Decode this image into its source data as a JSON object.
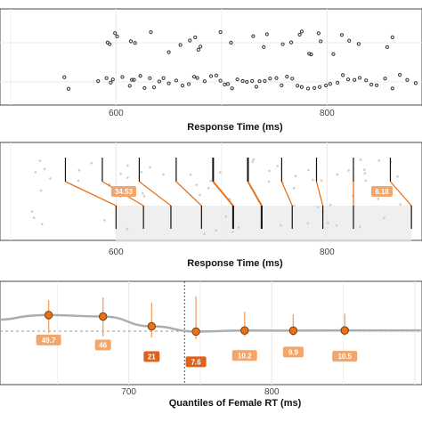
{
  "chart_data": [
    {
      "type": "scatter",
      "xlabel": "Response Time (ms)",
      "x_ticks": [
        600,
        800
      ],
      "xlim": [
        490,
        890
      ],
      "grid": true,
      "series": [
        {
          "y_row": "upper",
          "x": [
            592,
            594,
            599,
            601,
            614,
            618,
            633,
            650,
            661,
            670,
            675,
            678,
            680,
            699,
            709,
            730,
            740,
            743,
            758,
            766,
            774,
            776,
            783,
            785,
            792,
            794,
            806,
            814,
            821,
            830,
            857,
            862
          ]
        },
        {
          "y_row": "lower",
          "x": [
            551,
            555,
            583,
            591,
            595,
            597,
            606,
            613,
            615,
            617,
            623,
            627,
            632,
            636,
            641,
            645,
            650,
            657,
            663,
            669,
            674,
            677,
            684,
            690,
            695,
            699,
            703,
            706,
            710,
            715,
            720,
            724,
            729,
            733,
            736,
            741,
            746,
            752,
            757,
            762,
            767,
            772,
            776,
            782,
            788,
            793,
            799,
            803,
            810,
            815,
            820,
            826,
            831,
            837,
            842,
            847,
            855,
            862,
            869,
            876,
            884
          ]
        }
      ]
    },
    {
      "type": "scatter",
      "xlabel": "Response Time (ms)",
      "x_ticks": [
        600,
        800
      ],
      "xlim": [
        490,
        890
      ],
      "grid": true,
      "annotations": [
        "34.53",
        "6.18"
      ],
      "upper_deciles": [
        552,
        587,
        622,
        657,
        692,
        725,
        757,
        790,
        825,
        860
      ],
      "lower_deciles": [
        600,
        626,
        652,
        681,
        711,
        738,
        767,
        796,
        825,
        880
      ],
      "shaded_range": [
        600,
        880
      ]
    },
    {
      "type": "line",
      "xlabel": "Quantiles of Female RT (ms)",
      "x_ticks": [
        700,
        800
      ],
      "xlim": [
        610,
        905
      ],
      "highlight_x": [
        739
      ],
      "points": [
        {
          "x": 644,
          "y": 49.7,
          "label": "49.7"
        },
        {
          "x": 682,
          "y": 46,
          "label": "46"
        },
        {
          "x": 716,
          "y": 21,
          "label": "21"
        },
        {
          "x": 747,
          "y": 7.6,
          "label": "7.6"
        },
        {
          "x": 781,
          "y": 10.2,
          "label": "10.2"
        },
        {
          "x": 815,
          "y": 9.9,
          "label": "9.9"
        },
        {
          "x": 851,
          "y": 10.5,
          "label": "10.5"
        }
      ],
      "error_bars": [
        [
          644,
          4,
          88
        ],
        [
          682,
          -5,
          95
        ],
        [
          716,
          -8,
          82
        ],
        [
          747,
          -12,
          97
        ],
        [
          781,
          -5,
          58
        ],
        [
          815,
          -4,
          52
        ],
        [
          851,
          -3,
          53
        ]
      ]
    }
  ],
  "colors": {
    "orange": "#e8721c",
    "orange_light": "#f3a66b",
    "grey_line": "#a7afb0",
    "grid": "#ebebeb",
    "points": "#333333"
  }
}
